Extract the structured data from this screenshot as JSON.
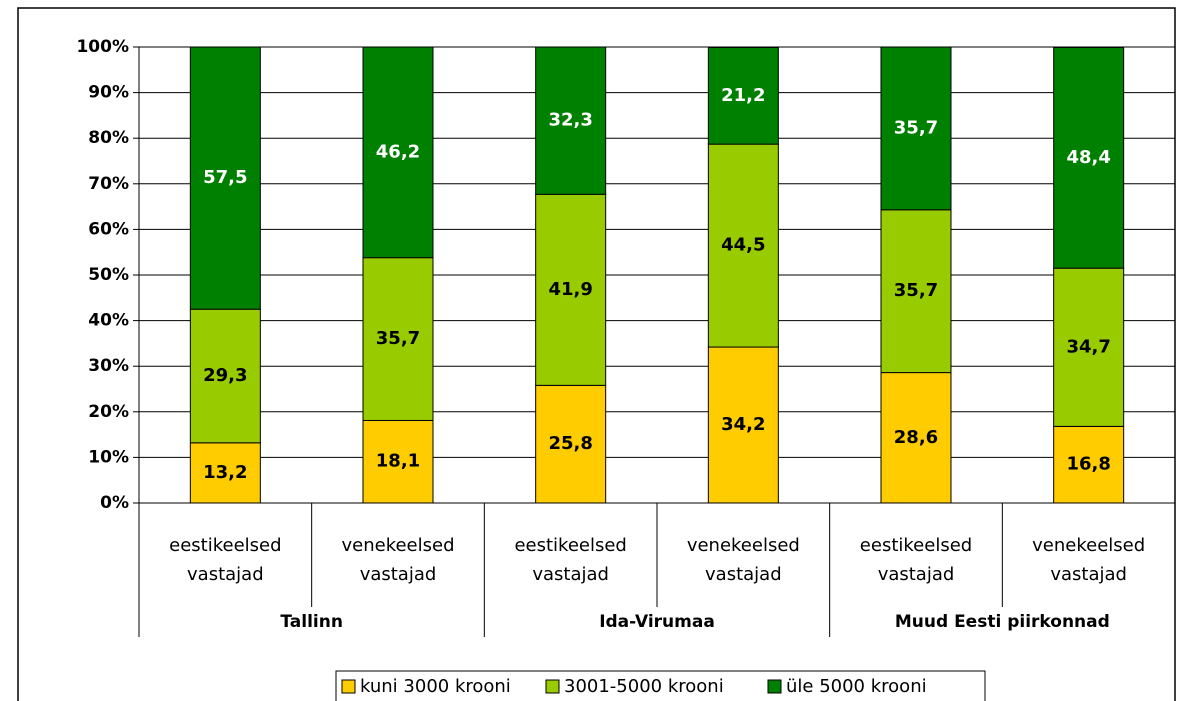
{
  "chart_data": {
    "type": "stacked_bar_100",
    "categories": [
      [
        "eestikeelsed",
        "vastajad"
      ],
      [
        "venekeelsed",
        "vastajad"
      ],
      [
        "eestikeelsed",
        "vastajad"
      ],
      [
        "venekeelsed",
        "vastajad"
      ],
      [
        "eestikeelsed",
        "vastajad"
      ],
      [
        "venekeelsed",
        "vastajad"
      ]
    ],
    "groups": [
      "Tallinn",
      "Ida-Virumaa",
      "Muud Eesti piirkonnad"
    ],
    "series": [
      {
        "name": "kuni 3000 krooni",
        "color": "#ffcc00",
        "label_color": "#000000",
        "values": [
          13.2,
          18.1,
          25.8,
          34.2,
          28.6,
          16.8
        ],
        "value_labels": [
          "13,2",
          "18,1",
          "25,8",
          "34,2",
          "28,6",
          "16,8"
        ]
      },
      {
        "name": "3001-5000 krooni",
        "color": "#99cc00",
        "label_color": "#000000",
        "values": [
          29.3,
          35.7,
          41.9,
          44.5,
          35.7,
          34.7
        ],
        "value_labels": [
          "29,3",
          "35,7",
          "41,9",
          "44,5",
          "35,7",
          "34,7"
        ]
      },
      {
        "name": "üle 5000 krooni",
        "color": "#008000",
        "label_color": "#ffffff",
        "values": [
          57.5,
          46.2,
          32.3,
          21.2,
          35.7,
          48.4
        ],
        "value_labels": [
          "57,5",
          "46,2",
          "32,3",
          "21,2",
          "35,7",
          "48,4"
        ]
      }
    ],
    "ylim": [
      0,
      100
    ],
    "yticks": [
      {
        "value": 0,
        "label": "0%"
      },
      {
        "value": 10,
        "label": "10%"
      },
      {
        "value": 20,
        "label": "20%"
      },
      {
        "value": 30,
        "label": "30%"
      },
      {
        "value": 40,
        "label": "40%"
      },
      {
        "value": 50,
        "label": "50%"
      },
      {
        "value": 60,
        "label": "60%"
      },
      {
        "value": 70,
        "label": "70%"
      },
      {
        "value": 80,
        "label": "80%"
      },
      {
        "value": 90,
        "label": "90%"
      },
      {
        "value": 100,
        "label": "100%"
      }
    ],
    "grid": true,
    "legend": "bottom"
  }
}
